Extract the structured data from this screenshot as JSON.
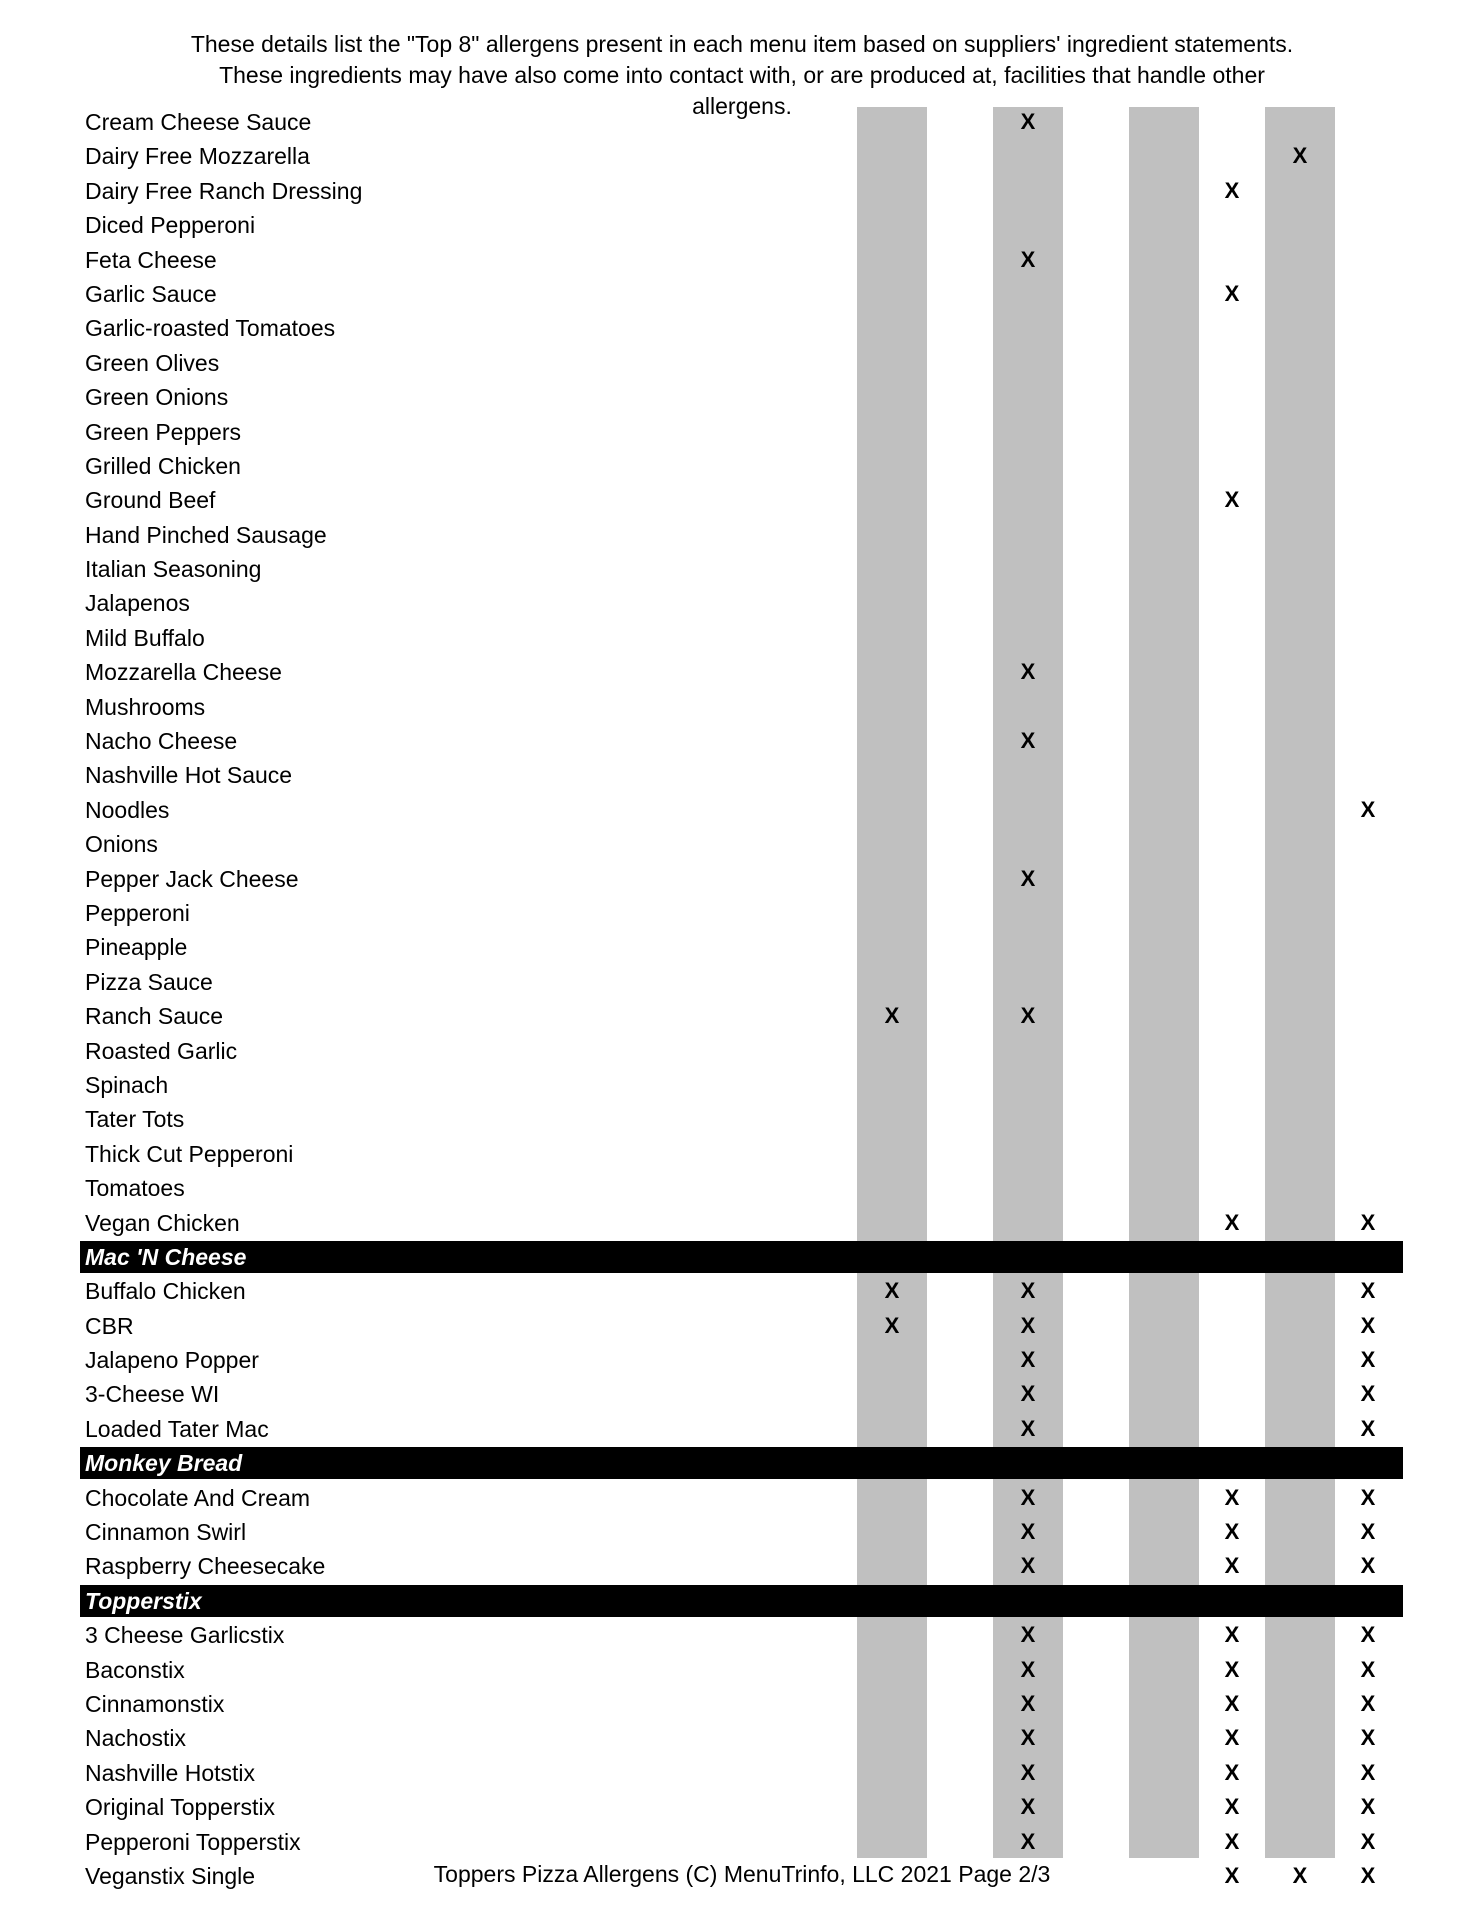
{
  "intro": {
    "line1": "These details list the \"Top 8\" allergens present in each menu item based on suppliers' ingredient statements.",
    "line2": "These ingredients may have also come into contact with, or are produced at, facilities that handle other",
    "line3": "allergens."
  },
  "mark_symbol": "X",
  "shaded_color": "#c0c0c0",
  "rows": [
    {
      "name": "Cream Cheese Sauce",
      "marks": [
        2
      ]
    },
    {
      "name": "Dairy Free Mozzarella",
      "marks": [
        6
      ]
    },
    {
      "name": "Dairy Free Ranch Dressing",
      "marks": [
        5
      ]
    },
    {
      "name": "Diced Pepperoni",
      "marks": []
    },
    {
      "name": "Feta Cheese",
      "marks": [
        2
      ]
    },
    {
      "name": "Garlic Sauce",
      "marks": [
        5
      ]
    },
    {
      "name": "Garlic-roasted Tomatoes",
      "marks": []
    },
    {
      "name": "Green Olives",
      "marks": []
    },
    {
      "name": "Green Onions",
      "marks": []
    },
    {
      "name": "Green Peppers",
      "marks": []
    },
    {
      "name": "Grilled Chicken",
      "marks": []
    },
    {
      "name": "Ground Beef",
      "marks": [
        5
      ]
    },
    {
      "name": "Hand Pinched Sausage",
      "marks": []
    },
    {
      "name": "Italian Seasoning",
      "marks": []
    },
    {
      "name": "Jalapenos",
      "marks": []
    },
    {
      "name": "Mild Buffalo",
      "marks": []
    },
    {
      "name": "Mozzarella Cheese",
      "marks": [
        2
      ]
    },
    {
      "name": "Mushrooms",
      "marks": []
    },
    {
      "name": "Nacho Cheese",
      "marks": [
        2
      ]
    },
    {
      "name": "Nashville Hot Sauce",
      "marks": []
    },
    {
      "name": "Noodles",
      "marks": [
        7
      ]
    },
    {
      "name": "Onions",
      "marks": []
    },
    {
      "name": "Pepper Jack Cheese",
      "marks": [
        2
      ]
    },
    {
      "name": "Pepperoni",
      "marks": []
    },
    {
      "name": "Pineapple",
      "marks": []
    },
    {
      "name": "Pizza Sauce",
      "marks": []
    },
    {
      "name": "Ranch Sauce",
      "marks": [
        0,
        2
      ]
    },
    {
      "name": "Roasted Garlic",
      "marks": []
    },
    {
      "name": "Spinach",
      "marks": []
    },
    {
      "name": "Tater Tots",
      "marks": []
    },
    {
      "name": "Thick Cut Pepperoni",
      "marks": []
    },
    {
      "name": "Tomatoes",
      "marks": []
    },
    {
      "name": "Vegan Chicken",
      "marks": [
        5,
        7
      ]
    },
    {
      "section": "Mac 'N Cheese"
    },
    {
      "name": "Buffalo Chicken",
      "marks": [
        0,
        2,
        7
      ]
    },
    {
      "name": "CBR",
      "marks": [
        0,
        2,
        7
      ]
    },
    {
      "name": "Jalapeno Popper",
      "marks": [
        2,
        7
      ]
    },
    {
      "name": "3-Cheese WI",
      "marks": [
        2,
        7
      ]
    },
    {
      "name": "Loaded Tater Mac",
      "marks": [
        2,
        7
      ]
    },
    {
      "section": "Monkey Bread"
    },
    {
      "name": "Chocolate And Cream",
      "marks": [
        2,
        5,
        7
      ]
    },
    {
      "name": "Cinnamon Swirl",
      "marks": [
        2,
        5,
        7
      ]
    },
    {
      "name": "Raspberry Cheesecake",
      "marks": [
        2,
        5,
        7
      ]
    },
    {
      "section": "Topperstix"
    },
    {
      "name": "3 Cheese Garlicstix",
      "marks": [
        2,
        5,
        7
      ]
    },
    {
      "name": "Baconstix",
      "marks": [
        2,
        5,
        7
      ]
    },
    {
      "name": "Cinnamonstix",
      "marks": [
        2,
        5,
        7
      ]
    },
    {
      "name": "Nachostix",
      "marks": [
        2,
        5,
        7
      ]
    },
    {
      "name": "Nashville Hotstix",
      "marks": [
        2,
        5,
        7
      ]
    },
    {
      "name": "Original Topperstix",
      "marks": [
        2,
        5,
        7
      ]
    },
    {
      "name": "Pepperoni Topperstix",
      "marks": [
        2,
        5,
        7
      ]
    },
    {
      "name": "Veganstix Single",
      "marks": [
        5,
        6,
        7
      ]
    }
  ],
  "footer": "Toppers Pizza Allergens (C) MenuTrinfo, LLC 2021 Page 2/3"
}
